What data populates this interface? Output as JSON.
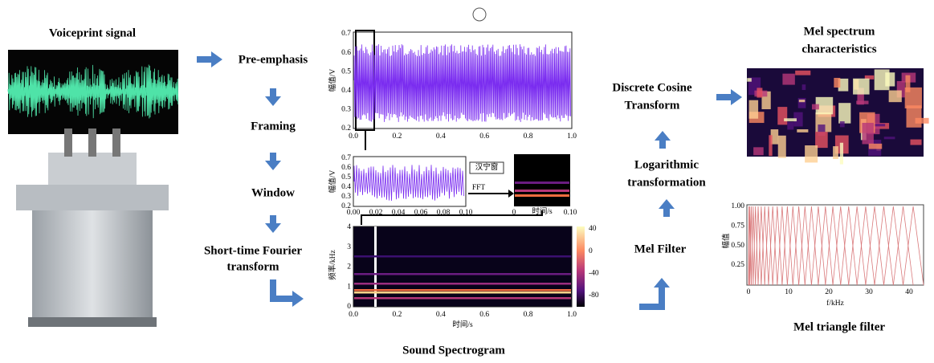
{
  "left": {
    "title": "Voiceprint signal"
  },
  "steps": {
    "pre_emphasis": "Pre-emphasis",
    "framing": "Framing",
    "window": "Window",
    "stft": [
      "Short-time Fourier",
      "transform"
    ]
  },
  "center": {
    "caption": "Sound Spectrogram",
    "wave": {
      "yticks": [
        "0.7",
        "0.6",
        "0.5",
        "0.4",
        "0.3",
        "0.2"
      ],
      "xticks": [
        "0.0",
        "0.2",
        "0.4",
        "0.6",
        "0.8",
        "1.0"
      ],
      "ylabel": "幅值/V"
    },
    "frame": {
      "yticks": [
        "0.7",
        "0.6",
        "0.5",
        "0.4",
        "0.3",
        "0.2"
      ],
      "xticks": [
        "0.00",
        "0.02",
        "0.04",
        "0.06",
        "0.08",
        "0.10"
      ],
      "window_label": "汉宁窗",
      "fft": "FFT",
      "ylabel": "幅值/V"
    },
    "small_spec": {
      "xticks": [
        "0",
        "0.10"
      ],
      "xlabel": "时间/s"
    },
    "spec": {
      "yticks": [
        "4",
        "3",
        "2",
        "1",
        "0"
      ],
      "xticks": [
        "0.0",
        "0.2",
        "0.4",
        "0.6",
        "0.8",
        "1.0"
      ],
      "cbticks": [
        "40",
        "0",
        "-40",
        "-80"
      ],
      "xlabel": "时间/s",
      "ylabel": "频率/kHz"
    }
  },
  "right_steps": {
    "dct": [
      "Discrete Cosine",
      "Transform"
    ],
    "log": [
      "Logarithmic",
      "transformation"
    ],
    "mel_filter": "Mel Filter"
  },
  "outputs": {
    "mel_spectrum": [
      "Mel spectrum",
      "characteristics"
    ],
    "mel_triangle": {
      "caption": "Mel triangle filter",
      "yticks": [
        "1.00",
        "0.75",
        "0.50",
        "0.25"
      ],
      "xticks": [
        "0",
        "10",
        "20",
        "30",
        "40"
      ],
      "xlabel": "f/kHz",
      "ylabel": "幅值"
    }
  }
}
